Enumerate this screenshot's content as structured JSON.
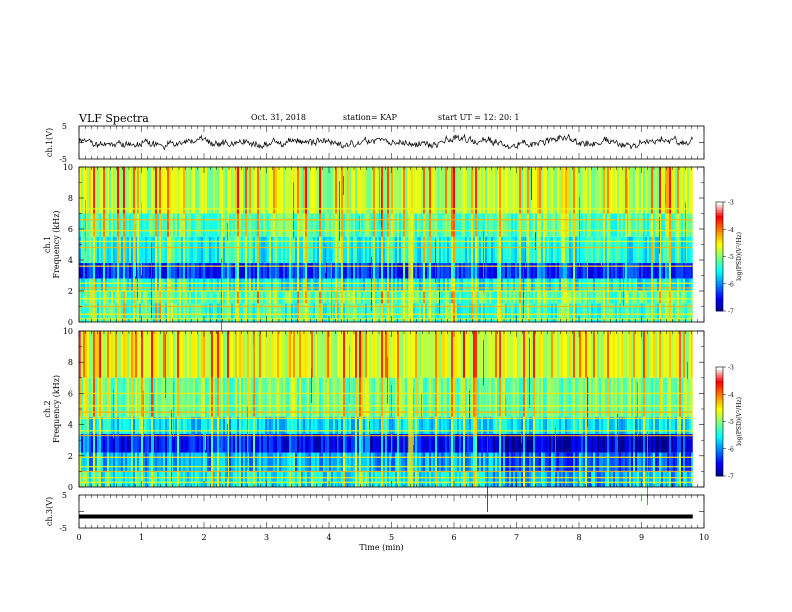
{
  "header": {
    "title": "VLF Spectra",
    "date": "Oct. 31, 2018",
    "station": "station= KAP",
    "start": "start UT = 12: 20: 1"
  },
  "chart_data": [
    {
      "type": "line",
      "panel": "ch1-waveform",
      "ylabel": "ch.1(V)",
      "ylim": [
        -5,
        5
      ],
      "yticks": [
        "5",
        "-5"
      ],
      "xlim": [
        0,
        10
      ],
      "data_extent_min": [
        0,
        9.82
      ],
      "series": [
        {
          "description_values": "noisy waveform",
          "mean": 0.0,
          "amplitude": 1.6
        }
      ]
    },
    {
      "type": "heatmap",
      "panel": "ch1-spectrogram",
      "ylabel": "ch.1 Frequency (kHz)",
      "ylim": [
        0,
        10
      ],
      "yticks": [
        "0",
        "2",
        "4",
        "6",
        "8",
        "10"
      ],
      "xlim": [
        0,
        10
      ],
      "colorbar": {
        "label": "log(PSD)(V²/Hz)",
        "range": [
          -7,
          -3
        ],
        "ticks": [
          "-3",
          "-4",
          "-5",
          "-6",
          "-7"
        ]
      },
      "horizontal_lines_khz": [
        0.2,
        0.5,
        1.0,
        1.5,
        2.0,
        2.2,
        2.5,
        3.6,
        4.8,
        5.2,
        5.9,
        6.6,
        7.3
      ],
      "event_time_min": 5.3
    },
    {
      "type": "heatmap",
      "panel": "ch2-spectrogram",
      "ylabel": "ch.2 Frequency (kHz)",
      "ylim": [
        0,
        10
      ],
      "yticks": [
        "0",
        "2",
        "4",
        "6",
        "8",
        "10"
      ],
      "xlim": [
        0,
        10
      ],
      "colorbar": {
        "label": "log(PSD)(V²/Hz)",
        "range": [
          -7,
          -3
        ],
        "ticks": [
          "-3",
          "-4",
          "-5",
          "-6",
          "-7"
        ]
      },
      "horizontal_lines_khz": [
        0.3,
        0.6,
        1.0,
        1.3,
        1.9,
        3.3,
        3.6,
        4.4,
        4.8,
        5.2,
        6.0
      ],
      "event_time_min": 5.3
    },
    {
      "type": "line",
      "panel": "ch3-waveform",
      "ylabel": "ch.3(V)",
      "ylim": [
        -5,
        5
      ],
      "yticks": [
        "5",
        "-5"
      ],
      "xlim": [
        0,
        10
      ],
      "data_extent_min": [
        0,
        9.82
      ],
      "series": [
        {
          "description_values": "flat line",
          "value": -1.5
        }
      ]
    }
  ],
  "xaxis": {
    "label": "Time (min)",
    "ticks": [
      "0",
      "1",
      "2",
      "3",
      "4",
      "5",
      "6",
      "7",
      "8",
      "9",
      "10"
    ]
  },
  "colors": {
    "cmap": [
      "#000080",
      "#0000ff",
      "#0080ff",
      "#00ffff",
      "#80ff80",
      "#ffff00",
      "#ff8000",
      "#ff0000",
      "#ffffff"
    ]
  }
}
